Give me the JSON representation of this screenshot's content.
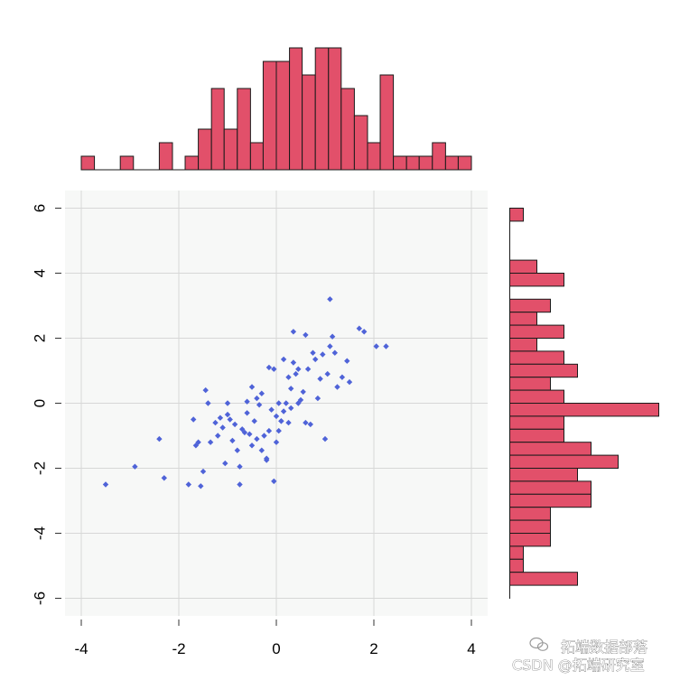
{
  "chart_data": {
    "type": "scatter",
    "title": "",
    "xlabel": "",
    "ylabel": "",
    "xlim": [
      -4.4,
      4.4
    ],
    "ylim": [
      -6.6,
      6.4
    ],
    "xticks": [
      -4,
      -2,
      0,
      2,
      4
    ],
    "yticks": [
      6,
      4,
      2,
      0,
      -2,
      -4,
      -6
    ],
    "grid": true,
    "colors": {
      "points": "#4f63d8",
      "bars": "#e2506a",
      "bar_edge": "#1a1a1a",
      "panel": "#f7f8f7",
      "grid": "#d7d7d7"
    },
    "scatter": {
      "points": [
        [
          -3.5,
          -2.5
        ],
        [
          -2.9,
          -1.95
        ],
        [
          -2.4,
          -1.1
        ],
        [
          -2.3,
          -2.3
        ],
        [
          -1.8,
          -2.5
        ],
        [
          -1.7,
          -0.5
        ],
        [
          -1.65,
          -1.3
        ],
        [
          -1.6,
          -1.2
        ],
        [
          -1.55,
          -2.55
        ],
        [
          -1.5,
          -2.1
        ],
        [
          -1.45,
          0.4
        ],
        [
          -1.4,
          0.0
        ],
        [
          -1.35,
          -1.2
        ],
        [
          -1.2,
          -1.0
        ],
        [
          -1.15,
          -0.45
        ],
        [
          -1.1,
          -0.75
        ],
        [
          -1.05,
          -1.85
        ],
        [
          -1.0,
          -0.35
        ],
        [
          -1.0,
          0.0
        ],
        [
          -0.95,
          -0.5
        ],
        [
          -0.9,
          -1.15
        ],
        [
          -0.85,
          -0.65
        ],
        [
          -0.8,
          -1.45
        ],
        [
          -0.75,
          -1.95
        ],
        [
          -0.75,
          -2.5
        ],
        [
          -0.7,
          -0.8
        ],
        [
          -0.65,
          -0.9
        ],
        [
          -0.6,
          -0.3
        ],
        [
          -0.6,
          0.05
        ],
        [
          -0.55,
          -0.95
        ],
        [
          -0.5,
          -1.3
        ],
        [
          -0.5,
          0.5
        ],
        [
          -0.45,
          -0.55
        ],
        [
          -0.4,
          -1.1
        ],
        [
          -0.4,
          0.15
        ],
        [
          -0.35,
          -0.05
        ],
        [
          -0.3,
          -1.45
        ],
        [
          -0.3,
          0.3
        ],
        [
          -0.25,
          -1.0
        ],
        [
          -0.2,
          -1.7
        ],
        [
          -0.2,
          -1.75
        ],
        [
          -0.15,
          -0.85
        ],
        [
          -0.1,
          -0.2
        ],
        [
          -0.05,
          -2.4
        ],
        [
          0.0,
          -1.2
        ],
        [
          0.0,
          -0.4
        ],
        [
          0.05,
          0.0
        ],
        [
          0.05,
          -0.85
        ],
        [
          0.1,
          -0.55
        ],
        [
          0.1,
          -0.55
        ],
        [
          0.15,
          1.35
        ],
        [
          0.2,
          0.0
        ],
        [
          0.25,
          -0.6
        ],
        [
          0.25,
          0.8
        ],
        [
          0.3,
          -0.15
        ],
        [
          0.35,
          1.25
        ],
        [
          0.35,
          2.2
        ],
        [
          0.4,
          0.9
        ],
        [
          0.45,
          0.0
        ],
        [
          0.45,
          1.05
        ],
        [
          0.5,
          0.1
        ],
        [
          0.55,
          0.35
        ],
        [
          0.6,
          2.1
        ],
        [
          0.65,
          1.05
        ],
        [
          0.7,
          -0.65
        ],
        [
          0.75,
          1.55
        ],
        [
          0.8,
          1.35
        ],
        [
          0.85,
          0.15
        ],
        [
          0.9,
          0.75
        ],
        [
          0.95,
          1.5
        ],
        [
          1.0,
          -1.1
        ],
        [
          1.05,
          0.9
        ],
        [
          1.1,
          3.2
        ],
        [
          1.1,
          1.75
        ],
        [
          1.15,
          2.05
        ],
        [
          1.2,
          1.55
        ],
        [
          1.25,
          0.5
        ],
        [
          1.35,
          0.8
        ],
        [
          1.45,
          1.3
        ],
        [
          1.5,
          0.65
        ],
        [
          1.7,
          2.3
        ],
        [
          1.8,
          2.2
        ],
        [
          2.05,
          1.75
        ],
        [
          2.25,
          1.75
        ],
        [
          -0.15,
          1.1
        ],
        [
          0.6,
          -0.6
        ],
        [
          -0.05,
          1.05
        ],
        [
          0.3,
          0.45
        ],
        [
          0.15,
          -0.25
        ],
        [
          -1.25,
          -0.6
        ]
      ]
    },
    "x_histogram": {
      "bin_edges": [
        -4.0,
        -3.73,
        -3.47,
        -3.2,
        -2.93,
        -2.67,
        -2.4,
        -2.13,
        -1.87,
        -1.6,
        -1.33,
        -1.07,
        -0.8,
        -0.53,
        -0.27,
        0.0,
        0.27,
        0.53,
        0.8,
        1.07,
        1.33,
        1.6,
        1.87,
        2.13,
        2.4,
        2.67,
        2.93,
        3.2,
        3.47,
        3.73,
        4.0
      ],
      "counts": [
        1,
        0,
        0,
        1,
        0,
        0,
        2,
        0,
        1,
        3,
        6,
        3,
        6,
        2,
        8,
        8,
        9,
        7,
        9,
        9,
        6,
        4,
        2,
        7,
        1,
        1,
        1,
        2,
        1,
        1
      ]
    },
    "y_histogram": {
      "bin_edges": [
        6.0,
        5.6,
        5.2,
        4.8,
        4.4,
        4.0,
        3.6,
        3.2,
        2.8,
        2.4,
        2.0,
        1.6,
        1.2,
        0.8,
        0.4,
        0.0,
        -0.4,
        -0.8,
        -1.2,
        -1.6,
        -2.0,
        -2.4,
        -2.8,
        -3.2,
        -3.6,
        -4.0,
        -4.4,
        -4.8,
        -5.2,
        -5.6,
        -6.0
      ],
      "counts": [
        1,
        0,
        0,
        0,
        2,
        4,
        0,
        3,
        2,
        4,
        2,
        4,
        5,
        3,
        4,
        11,
        4,
        4,
        6,
        8,
        5,
        6,
        6,
        3,
        3,
        3,
        1,
        1,
        5,
        0
      ]
    }
  },
  "watermark": {
    "line1": "拓端数据部落",
    "line2": "CSDN @拓端研究室"
  }
}
